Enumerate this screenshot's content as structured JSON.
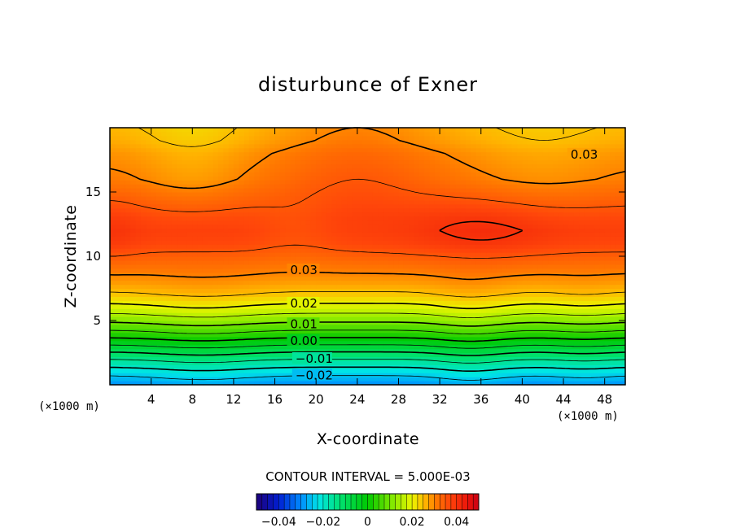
{
  "chart_data": {
    "type": "contour",
    "title": "disturbunce of Exner",
    "xlabel": "X-coordinate",
    "ylabel": "Z-coordinate",
    "x_unit_label": "(×1000 m)",
    "xlim": [
      0,
      50
    ],
    "ylim": [
      0,
      20
    ],
    "x_ticks": [
      "4",
      "8",
      "12",
      "16",
      "20",
      "24",
      "28",
      "32",
      "36",
      "40",
      "44",
      "48"
    ],
    "x_tick_values": [
      4,
      8,
      12,
      16,
      20,
      24,
      28,
      32,
      36,
      40,
      44,
      48
    ],
    "y_ticks": [
      "5",
      "10",
      "15"
    ],
    "y_tick_values": [
      5,
      10,
      15
    ],
    "contour_interval_text": "CONTOUR INTERVAL = 5.000E-03",
    "contour_interval": 0.005,
    "contour_labels": [
      {
        "text": "0.03",
        "x": 44.7,
        "z": 17.8
      },
      {
        "text": "0.03",
        "x": 17.5,
        "z": 8.8
      },
      {
        "text": "0.02",
        "x": 17.5,
        "z": 6.2
      },
      {
        "text": "0.01",
        "x": 17.5,
        "z": 4.6
      },
      {
        "text": "0.00",
        "x": 17.5,
        "z": 3.3
      },
      {
        "text": "−0.01",
        "x": 18.0,
        "z": 1.9
      },
      {
        "text": "−0.02",
        "x": 18.0,
        "z": 0.6
      }
    ],
    "colorbar": {
      "range": [
        -0.05,
        0.05
      ],
      "tick_labels": [
        "−0.04",
        "−0.02",
        "0",
        "0.02",
        "0.04"
      ],
      "tick_values": [
        -0.04,
        -0.02,
        0,
        0.02,
        0.04
      ]
    },
    "profile_z": [
      0,
      1,
      2,
      3,
      4,
      5,
      6,
      7,
      8,
      9,
      10,
      11,
      12,
      13,
      14,
      15,
      16,
      17,
      18,
      19,
      20
    ],
    "profile_values": [
      -0.03,
      -0.023,
      -0.015,
      -0.006,
      0.003,
      0.011,
      0.018,
      0.024,
      0.028,
      0.031,
      0.034,
      0.037,
      0.038,
      0.037,
      0.035,
      0.033,
      0.031,
      0.03,
      0.029,
      0.027,
      0.026
    ]
  }
}
